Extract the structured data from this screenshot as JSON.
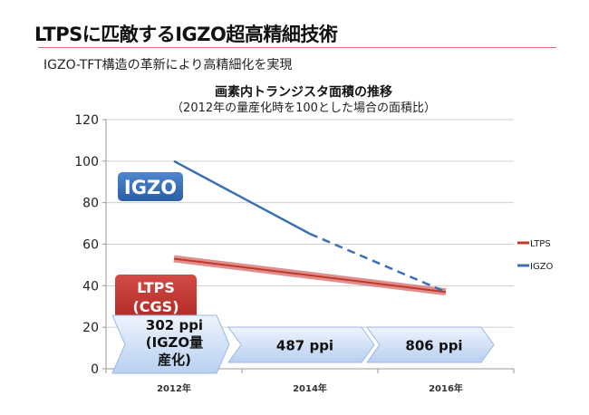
{
  "slide": {
    "title": "LTPSに匹敵するIGZO超高精細技術",
    "subtitle": "IGZO-TFT構造の革新により高精細化を実現"
  },
  "chart_data": {
    "type": "line",
    "title": "画素内トランジスタ面積の推移",
    "subtitle": "（2012年の量産化時を100とした場合の面積比）",
    "categories": [
      "2012年",
      "2014年",
      "2016年"
    ],
    "ylim": [
      0,
      120
    ],
    "yticks": [
      0,
      20,
      40,
      60,
      80,
      100,
      120
    ],
    "grid": true,
    "legend_position": "right",
    "series": [
      {
        "name": "LTPS",
        "values": [
          53,
          45,
          37
        ],
        "color": "#c0392b"
      },
      {
        "name": "IGZO",
        "values": [
          100,
          65,
          37
        ],
        "color": "#3a6fb5",
        "dashed_from_index": 1
      }
    ],
    "annotations": {
      "igzo_label": "IGZO",
      "ltps_label_1": "LTPS",
      "ltps_label_2": "(CGS)",
      "arrows": [
        [
          "302 ppi",
          "(IGZO量",
          "産化)"
        ],
        [
          "487 ppi"
        ],
        [
          "806 ppi"
        ]
      ]
    }
  }
}
